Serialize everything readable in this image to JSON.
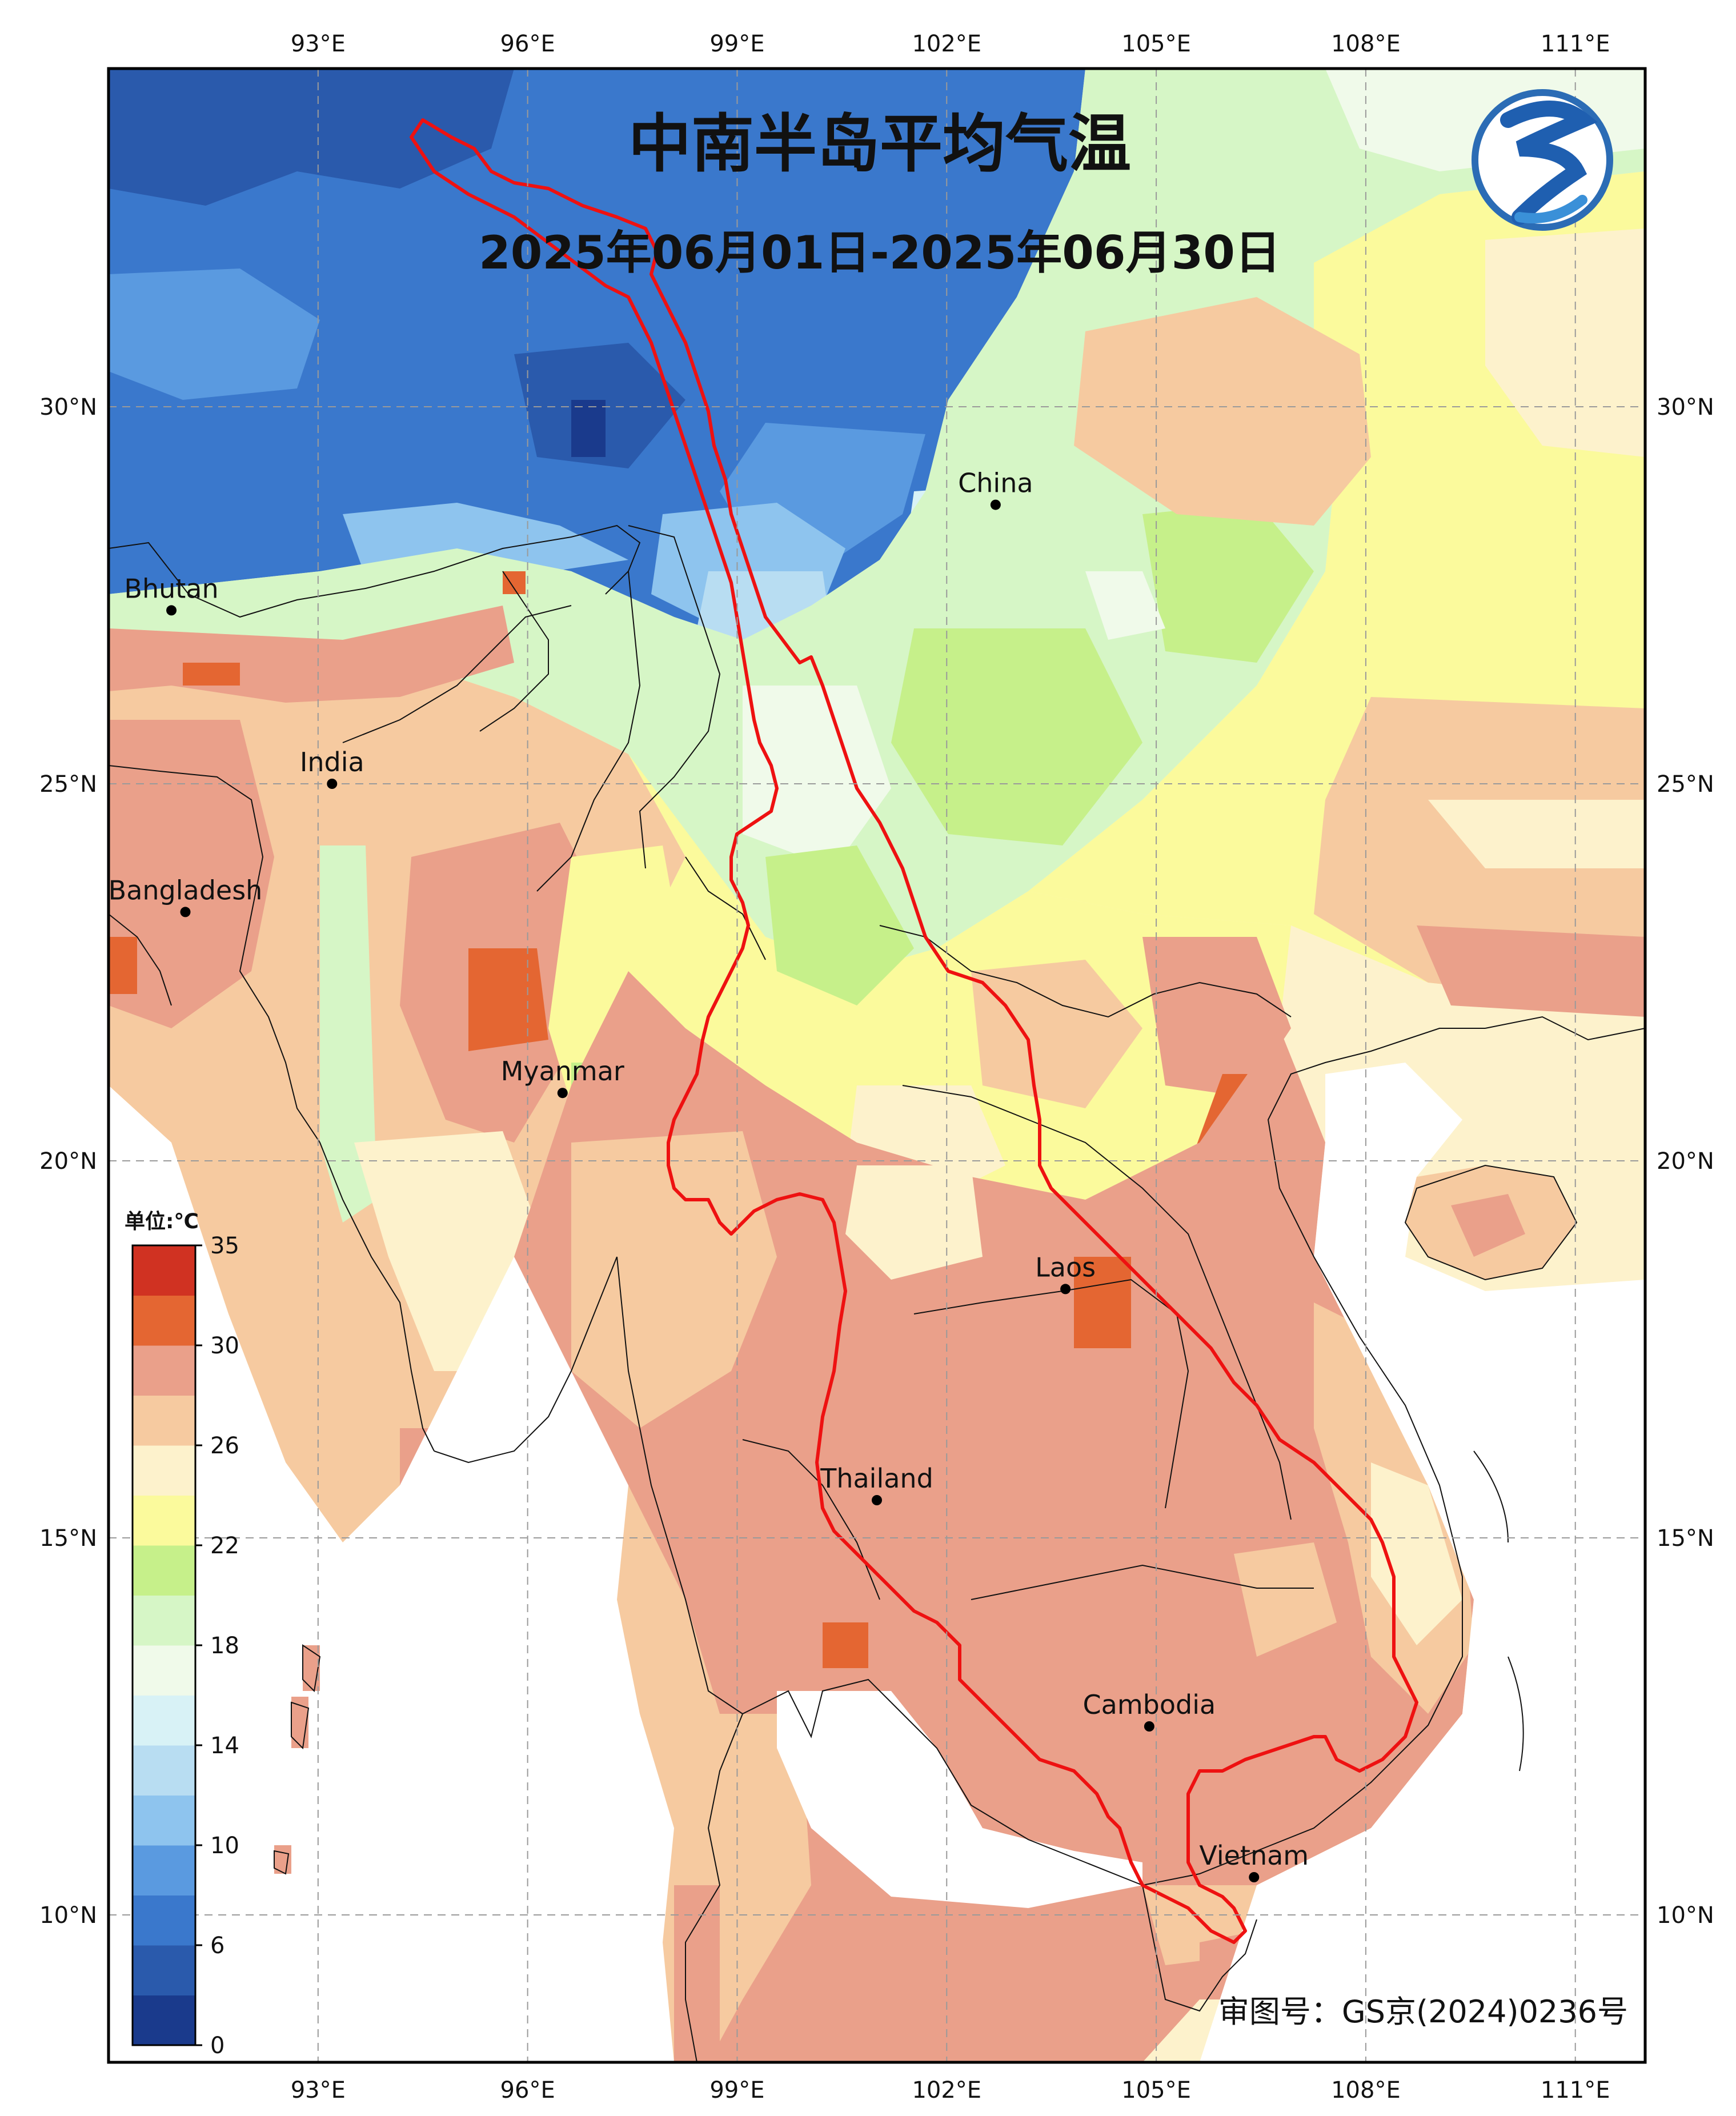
{
  "title": "中南半岛平均气温",
  "date_range": "2025年06月01日-2025年06月30日",
  "approval_number": "审图号：GS京(2024)0236号",
  "lon_labels": [
    "93°E",
    "96°E",
    "99°E",
    "102°E",
    "105°E",
    "108°E",
    "111°E"
  ],
  "lat_labels": [
    "30°N",
    "25°N",
    "20°N",
    "15°N",
    "10°N"
  ],
  "places": [
    {
      "name": "China",
      "lon": 102.7,
      "lat": 28.7
    },
    {
      "name": "Bhutan",
      "lon": 90.9,
      "lat": 27.3
    },
    {
      "name": "India",
      "lon": 93.2,
      "lat": 25.0
    },
    {
      "name": "Bangladesh",
      "lon": 91.1,
      "lat": 23.3
    },
    {
      "name": "Myanmar",
      "lon": 96.5,
      "lat": 20.9
    },
    {
      "name": "Laos",
      "lon": 103.7,
      "lat": 18.3
    },
    {
      "name": "Thailand",
      "lon": 101.0,
      "lat": 15.5
    },
    {
      "name": "Cambodia",
      "lon": 104.9,
      "lat": 12.5
    },
    {
      "name": "Vietnam",
      "lon": 106.4,
      "lat": 10.5
    }
  ],
  "legend": {
    "unit_label": "单位:℃",
    "colors": [
      "#1a3a8c",
      "#2a5aac",
      "#3a78cc",
      "#5a9ae0",
      "#8ec4ee",
      "#b8ddf2",
      "#d8f2f6",
      "#f0faea",
      "#d6f6c6",
      "#c6f08a",
      "#fbfa9c",
      "#fdf2cc",
      "#f6caa0",
      "#eaa08a",
      "#e46632",
      "#d03222"
    ],
    "tick_labels": [
      "0",
      "6",
      "10",
      "14",
      "18",
      "22",
      "26",
      "30",
      "35"
    ]
  }
}
